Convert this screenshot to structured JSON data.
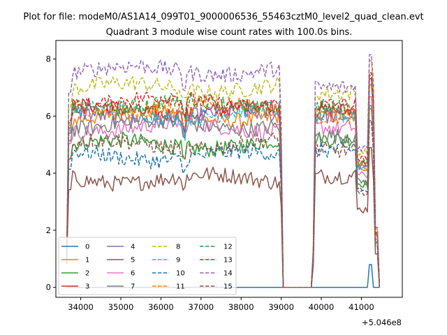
{
  "figure": {
    "suptitle": "Plot for file: modeM0/AS1A14_099T01_9000006536_55463cztM0_level2_quad_clean.evt"
  },
  "chart_data": {
    "type": "line",
    "title": "Quadrant 3 module wise count rates with 100.0s bins.",
    "xlabel": "",
    "ylabel": "",
    "x_offset_label": "+5.046e8",
    "x_offset": 504600000,
    "xlim": [
      33380,
      42020
    ],
    "ylim": [
      -0.35,
      8.65
    ],
    "xticks": [
      34000,
      35000,
      36000,
      37000,
      38000,
      39000,
      40000,
      41000
    ],
    "xtick_labels": [
      "34000",
      "35000",
      "36000",
      "37000",
      "38000",
      "39000",
      "40000",
      "41000"
    ],
    "yticks": [
      0,
      2,
      4,
      6,
      8
    ],
    "ytick_labels": [
      "0",
      "2",
      "4",
      "6",
      "8"
    ],
    "grid": false,
    "legend": {
      "placement": "lower-left",
      "columns": 4
    },
    "segments": [
      {
        "start": 33650,
        "end": 39000
      },
      {
        "start": 39800,
        "end": 41450
      }
    ],
    "gap_x": [
      39050,
      39150,
      39250,
      39350,
      39450,
      39550,
      39650,
      39750
    ],
    "series": [
      {
        "name": "0",
        "color": "#1f77b4",
        "style": "solid",
        "seg1": 0.0,
        "seg2": 0.0
      },
      {
        "name": "1",
        "color": "#ff7f0e",
        "style": "solid",
        "seg1": 6.0,
        "seg2": 6.0
      },
      {
        "name": "2",
        "color": "#2ca02c",
        "style": "solid",
        "seg1": 5.0,
        "seg2": 5.2
      },
      {
        "name": "3",
        "color": "#d62728",
        "style": "solid",
        "seg1": 6.2,
        "seg2": 6.2
      },
      {
        "name": "4",
        "color": "#9467bd",
        "style": "solid",
        "seg1": 6.0,
        "seg2": 6.0
      },
      {
        "name": "5",
        "color": "#8c564b",
        "style": "solid",
        "seg1": 3.8,
        "seg2": 3.9
      },
      {
        "name": "6",
        "color": "#e377c2",
        "style": "solid",
        "seg1": 5.6,
        "seg2": 5.6
      },
      {
        "name": "7",
        "color": "#7f7f7f",
        "style": "solid",
        "seg1": 5.7,
        "seg2": 5.3
      },
      {
        "name": "8",
        "color": "#bcbd22",
        "style": "dashed",
        "seg1": 7.0,
        "seg2": 6.8
      },
      {
        "name": "9",
        "color": "#17becf",
        "style": "dashed",
        "seg1": 6.1,
        "seg2": 6.0
      },
      {
        "name": "10",
        "color": "#1f77b4",
        "style": "dashed",
        "seg1": 4.6,
        "seg2": 4.8
      },
      {
        "name": "11",
        "color": "#ff7f0e",
        "style": "dashed",
        "seg1": 6.3,
        "seg2": 6.0
      },
      {
        "name": "12",
        "color": "#2ca02c",
        "style": "dashed",
        "seg1": 6.4,
        "seg2": 6.3
      },
      {
        "name": "13",
        "color": "#d62728",
        "style": "dashed",
        "seg1": 6.5,
        "seg2": 6.4
      },
      {
        "name": "14",
        "color": "#9467bd",
        "style": "dashed",
        "seg1": 7.6,
        "seg2": 7.0
      },
      {
        "name": "15",
        "color": "#8c564b",
        "style": "dashed",
        "seg1": 5.0,
        "seg2": 4.8
      }
    ]
  }
}
